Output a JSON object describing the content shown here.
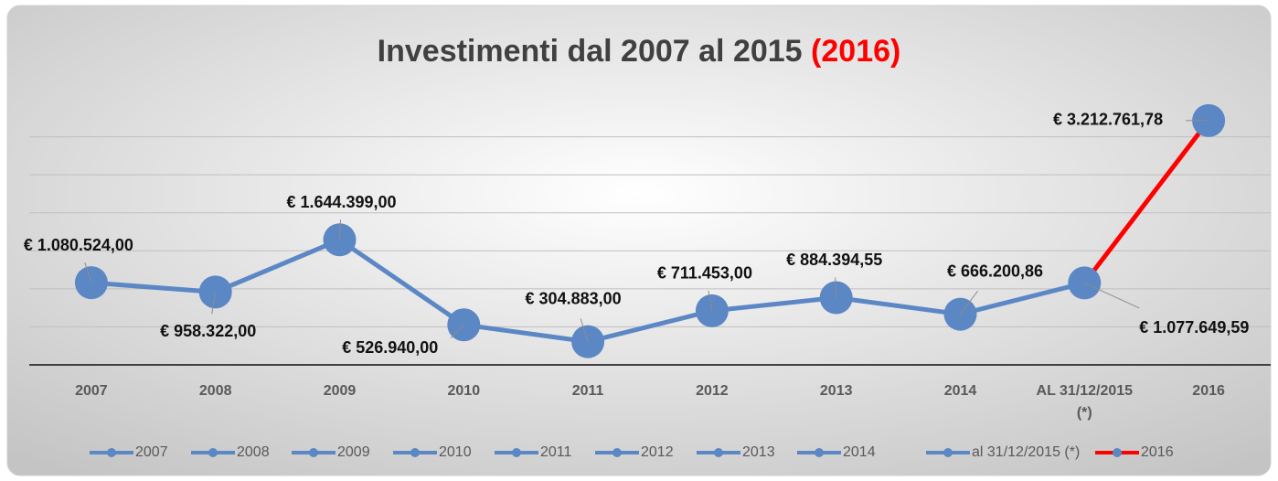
{
  "chart_data": {
    "type": "line",
    "title": "Investimenti dal 2007 al 2015",
    "title_highlight": "(2016)",
    "title_highlight_color": "#ff0000",
    "categories": [
      "2007",
      "2008",
      "2009",
      "2010",
      "2011",
      "2012",
      "2013",
      "2014",
      "AL 31/12/2015 (*)",
      "2016"
    ],
    "values": [
      1080524,
      958322,
      1644399,
      526940,
      304883,
      711453,
      884394.55,
      666200.86,
      1077649.59,
      3212761.78
    ],
    "value_labels": [
      "€ 1.080.524,00",
      "€ 958.322,00",
      "€ 1.644.399,00",
      "€ 526.940,00",
      "€ 304.883,00",
      "€ 711.453,00",
      "€ 884.394,55",
      "€ 666.200,86",
      "€ 1.077.649,59",
      "€ 3.212.761,78"
    ],
    "color": "#5b87c4",
    "ylim": [
      0,
      3500000
    ],
    "yticks": [
      0,
      500000,
      1000000,
      1500000,
      2000000,
      2500000,
      3000000
    ],
    "grid": true,
    "series": [
      {
        "name": "2007",
        "color": "#5b87c4"
      },
      {
        "name": "2008",
        "color": "#5b87c4"
      },
      {
        "name": "2009",
        "color": "#5b87c4"
      },
      {
        "name": "2010",
        "color": "#5b87c4"
      },
      {
        "name": "2011",
        "color": "#5b87c4"
      },
      {
        "name": "2012",
        "color": "#5b87c4"
      },
      {
        "name": "2013",
        "color": "#5b87c4"
      },
      {
        "name": "2014",
        "color": "#5b87c4"
      },
      {
        "name": "al 31/12/2015 (*)",
        "color": "#5b87c4"
      },
      {
        "name": "2016",
        "color": "#ff0000"
      }
    ],
    "legend": "bottom"
  }
}
